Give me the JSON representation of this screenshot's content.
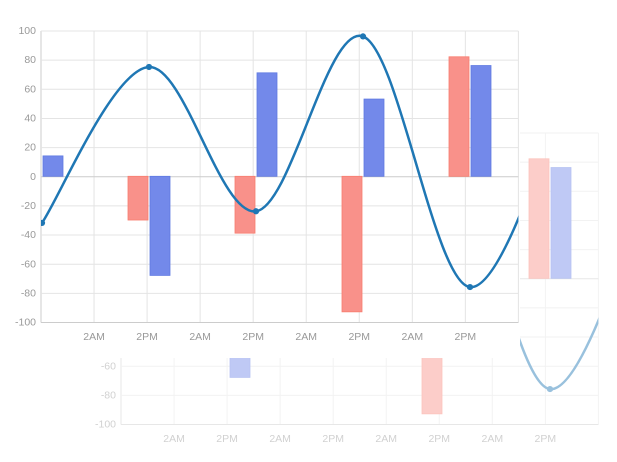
{
  "app": {
    "background": "#ffffff",
    "description": "mixed bar and line chart with a faded duplicate chart offset behind it"
  },
  "chart_data": {
    "type": "mixed",
    "title": "",
    "xlabel": "",
    "ylabel": "",
    "x_tick_labels": [
      "2AM",
      "2PM",
      "2AM",
      "2PM",
      "2AM",
      "2PM",
      "2AM",
      "2PM"
    ],
    "y_ticks": [
      100,
      80,
      60,
      40,
      20,
      0,
      -20,
      -40,
      -60,
      -80,
      -100
    ],
    "ylim": [
      -100,
      100
    ],
    "grid": true,
    "legend": "none",
    "series": [
      {
        "name": "red-bars",
        "type": "bar",
        "color": "#f9918a",
        "edge_color": "#f87d6f",
        "values": [
          null,
          -30,
          -39,
          -93,
          82
        ]
      },
      {
        "name": "blue-bars",
        "type": "bar",
        "color": "#7389ea",
        "edge_color": "#5f7ae2",
        "values": [
          14,
          -68,
          71,
          53,
          76
        ]
      },
      {
        "name": "smooth-line",
        "type": "line",
        "smooth": true,
        "show_points": true,
        "color": "#1f77b4",
        "values": [
          -32,
          75,
          -24,
          96,
          -76
        ],
        "note": "curve continues rising past the last point and is clipped at the right plot edge"
      }
    ],
    "ghost_duplicate": {
      "present": true,
      "offset_x": 80,
      "offset_y": 102,
      "opacity": 0.45,
      "visible_fragments": "y labels -60/-80/-100, x labels 2AM..2PM, faded bar pair, faded -68 and -93 bars, faded line trough"
    },
    "colors": {
      "axis_label": "#999999",
      "grid_line": "#e4e4e4",
      "axis_line": "#cccccc",
      "plot_background": "#ffffff"
    }
  }
}
